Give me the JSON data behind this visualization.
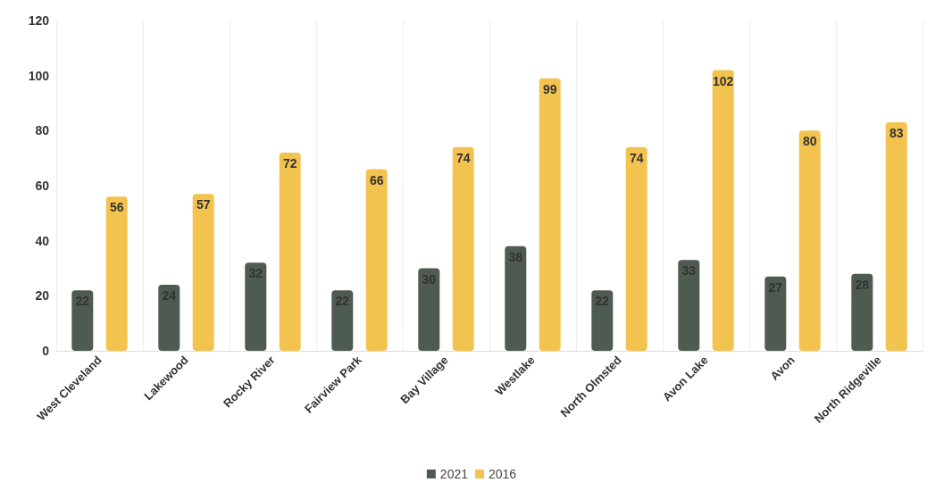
{
  "chart_data": {
    "type": "bar",
    "categories": [
      "West Cleveland",
      "Lakewood",
      "Rocky River",
      "Fairview Park",
      "Bay Village",
      "Westlake",
      "North Olmsted",
      "Avon Lake",
      "Avon",
      "North Ridgeville"
    ],
    "series": [
      {
        "name": "2021",
        "color": "#4e5b50",
        "values": [
          22,
          24,
          32,
          22,
          30,
          38,
          22,
          33,
          27,
          28
        ]
      },
      {
        "name": "2016",
        "color": "#f3c34f",
        "values": [
          56,
          57,
          72,
          66,
          74,
          99,
          74,
          102,
          80,
          83
        ]
      }
    ],
    "ylim": [
      0,
      120
    ],
    "yticks": [
      0,
      20,
      40,
      60,
      80,
      100,
      120
    ],
    "grid": "x",
    "legend": "bottom",
    "data_labels": true
  }
}
